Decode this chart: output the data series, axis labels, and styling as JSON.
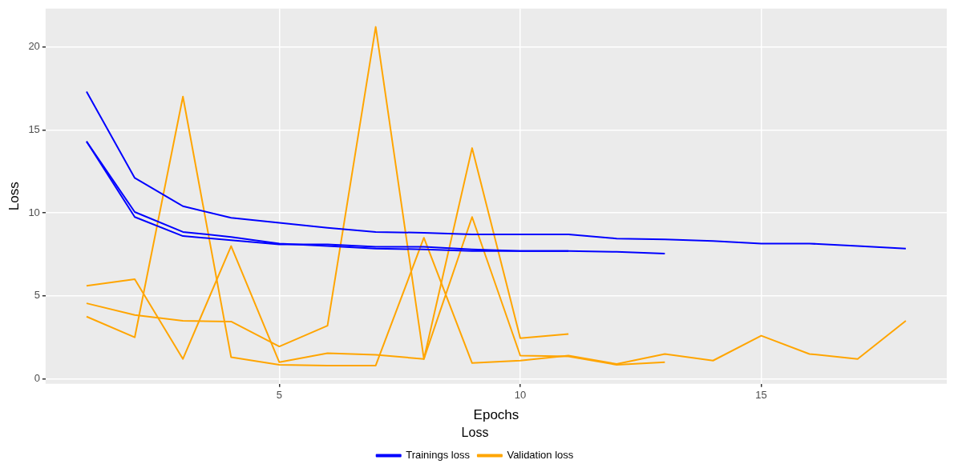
{
  "chart_data": {
    "type": "line",
    "xlabel": "Epochs",
    "ylabel": "Loss",
    "legend_title": "Loss",
    "legend": "bottom",
    "grid": true,
    "marker": "none",
    "line_style": "solid",
    "xlim": [
      0.15,
      18.85
    ],
    "xticks": [
      5,
      10,
      15
    ],
    "ylim": [
      -0.3,
      22.3
    ],
    "yticks": [
      0,
      5,
      10,
      15,
      20
    ],
    "series": [
      {
        "name": "Trainings loss",
        "color": "#0000ff",
        "x": [
          1,
          2,
          3,
          4,
          5,
          6,
          7,
          8,
          9,
          10,
          11,
          12,
          13,
          14,
          15,
          16,
          17,
          18
        ],
        "values": [
          17.3,
          12.1,
          10.4,
          9.7,
          9.4,
          9.1,
          8.85,
          8.8,
          8.7,
          8.7,
          8.7,
          8.45,
          8.4,
          8.3,
          8.15,
          8.15,
          8.0,
          7.85
        ]
      },
      {
        "color": "#0000ff",
        "x": [
          1,
          2,
          3,
          4,
          5,
          6,
          7,
          8,
          9,
          10,
          11,
          12,
          13
        ],
        "values": [
          14.3,
          9.75,
          8.6,
          8.35,
          8.1,
          8.1,
          7.95,
          7.95,
          7.8,
          7.7,
          7.7,
          7.65,
          7.55
        ]
      },
      {
        "color": "#0000ff",
        "x": [
          1,
          2,
          3,
          4,
          5,
          6,
          7,
          8,
          9,
          10,
          11
        ],
        "values": [
          14.3,
          10.05,
          8.85,
          8.55,
          8.15,
          8.0,
          7.85,
          7.8,
          7.7,
          7.7,
          7.7
        ]
      },
      {
        "name": "Validation loss",
        "color": "#ffa500",
        "x": [
          1,
          2,
          3,
          4,
          5,
          6,
          7,
          8,
          9,
          10,
          11,
          12,
          13,
          14,
          15,
          16,
          17,
          18
        ],
        "values": [
          3.75,
          2.5,
          17.0,
          1.3,
          0.85,
          0.8,
          0.8,
          8.5,
          0.95,
          1.1,
          1.4,
          0.9,
          1.5,
          1.1,
          2.6,
          1.5,
          1.2,
          3.5
        ]
      },
      {
        "color": "#ffa500",
        "x": [
          1,
          2,
          3,
          4,
          5,
          6,
          7,
          8,
          9,
          10,
          11,
          12,
          13
        ],
        "values": [
          5.6,
          6.0,
          1.2,
          8.0,
          1.0,
          1.55,
          1.45,
          1.2,
          9.75,
          1.4,
          1.35,
          0.85,
          1.0
        ]
      },
      {
        "color": "#ffa500",
        "x": [
          1,
          2,
          3,
          4,
          5,
          6,
          7,
          8,
          9,
          10,
          11
        ],
        "values": [
          4.55,
          3.85,
          3.5,
          3.45,
          1.95,
          3.2,
          21.2,
          1.2,
          13.9,
          2.45,
          2.7
        ]
      }
    ]
  }
}
